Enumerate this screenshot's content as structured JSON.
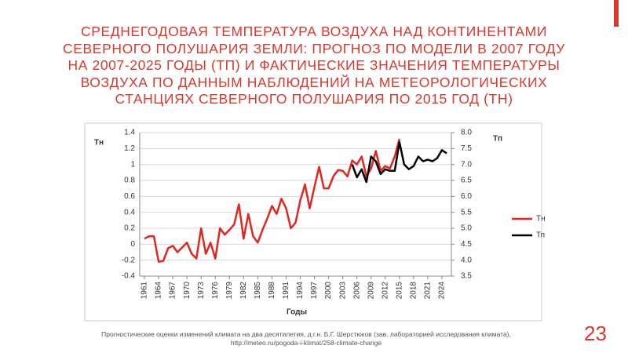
{
  "slide": {
    "title": [
      "СРЕДНЕГОДОВАЯ ТЕМПЕРАТУРА ВОЗДУХА НАД КОНТИНЕНТАМИ",
      "СЕВЕРНОГО ПОЛУШАРИЯ ЗЕМЛИ: ПРОГНОЗ ПО МОДЕЛИ В 2007 ГОДУ",
      "НА 2007-2025 ГОДЫ (ТП) И ФАКТИЧЕСКИЕ ЗНАЧЕНИЯ ТЕМПЕРАТУРЫ",
      "ВОЗДУХА ПО ДАННЫМ НАБЛЮДЕНИЙ НА МЕТЕОРОЛОГИЧЕСКИХ",
      "СТАНЦИЯХ СЕВЕРНОГО ПОЛУШАРИЯ ПО 2015 ГОД (ТН)"
    ],
    "footnote": [
      "Прогностические оценки изменений климата на два десятилетия, д.г.н. Б.Г. Шерстюков (зав. лабораторией исследования климата),",
      "http://meteo.ru/pogoda-i-klimat/258-climate-change"
    ],
    "page_number": "23"
  },
  "chart_data": {
    "type": "line",
    "x_label": "Годы",
    "y_label": "Тн",
    "y2_label": "Тп",
    "x": [
      1961,
      1962,
      1963,
      1964,
      1965,
      1966,
      1967,
      1968,
      1969,
      1970,
      1971,
      1972,
      1973,
      1974,
      1975,
      1976,
      1977,
      1978,
      1979,
      1980,
      1981,
      1982,
      1983,
      1984,
      1985,
      1986,
      1987,
      1988,
      1989,
      1990,
      1991,
      1992,
      1993,
      1994,
      1995,
      1996,
      1997,
      1998,
      1999,
      2000,
      2001,
      2002,
      2003,
      2004,
      2005,
      2006,
      2007,
      2008,
      2009,
      2010,
      2011,
      2012,
      2013,
      2014,
      2015,
      2016,
      2017,
      2018,
      2019,
      2020,
      2021,
      2022,
      2023,
      2024,
      2025
    ],
    "xlim": [
      1960,
      2026
    ],
    "xticks": [
      1961,
      1964,
      1967,
      1970,
      1973,
      1976,
      1979,
      1982,
      1985,
      1988,
      1991,
      1994,
      1997,
      2000,
      2003,
      2006,
      2009,
      2012,
      2015,
      2018,
      2021,
      2024
    ],
    "ylim": [
      -0.4,
      1.4
    ],
    "yticks": [
      -0.4,
      -0.2,
      0,
      0.2,
      0.4,
      0.6,
      0.8,
      1,
      1.2,
      1.4
    ],
    "y2lim": [
      3.5,
      8
    ],
    "y2ticks": [
      3.5,
      {
        "value": 4,
        "label": "4.0"
      },
      4.5,
      {
        "value": 5,
        "label": "5.0"
      },
      5.5,
      {
        "value": 6,
        "label": "6.0"
      },
      6.5,
      {
        "value": 7,
        "label": "7.0"
      },
      7.5,
      {
        "value": 8,
        "label": "8.0"
      }
    ],
    "grid": true,
    "legend": "right",
    "series": [
      {
        "name": "Тн",
        "color": "#e3261f",
        "values": [
          0.07,
          0.1,
          0.1,
          -0.22,
          -0.21,
          -0.05,
          -0.02,
          -0.1,
          -0.04,
          0.02,
          -0.12,
          -0.18,
          0.2,
          -0.12,
          0.02,
          -0.18,
          0.2,
          0.12,
          0.18,
          0.25,
          0.5,
          0.07,
          0.38,
          0.1,
          0.02,
          0.18,
          0.32,
          0.48,
          0.38,
          0.57,
          0.45,
          0.2,
          0.27,
          0.55,
          0.75,
          0.45,
          0.72,
          0.97,
          0.7,
          0.7,
          0.85,
          0.93,
          0.92,
          0.85,
          1.05,
          1,
          1.1,
          0.85,
          0.95,
          1.17,
          0.92,
          0.98,
          0.95,
          1.1,
          1.32,
          null,
          null,
          null,
          null,
          null,
          null,
          null,
          null,
          null,
          null
        ]
      },
      {
        "name": "Тп",
        "color": "#000000",
        "axis": "y2",
        "values": [
          null,
          null,
          null,
          null,
          null,
          null,
          null,
          null,
          null,
          null,
          null,
          null,
          null,
          null,
          null,
          null,
          null,
          null,
          null,
          null,
          null,
          null,
          null,
          null,
          null,
          null,
          null,
          null,
          null,
          null,
          null,
          null,
          null,
          null,
          null,
          null,
          null,
          null,
          null,
          null,
          null,
          null,
          null,
          null,
          7,
          6.6,
          6.85,
          6.45,
          7.25,
          7.1,
          6.7,
          6.85,
          6.8,
          6.8,
          7.7,
          7,
          6.85,
          6.95,
          7.25,
          7.1,
          7.15,
          7.1,
          7.2,
          7.45,
          7.35
        ]
      }
    ]
  }
}
